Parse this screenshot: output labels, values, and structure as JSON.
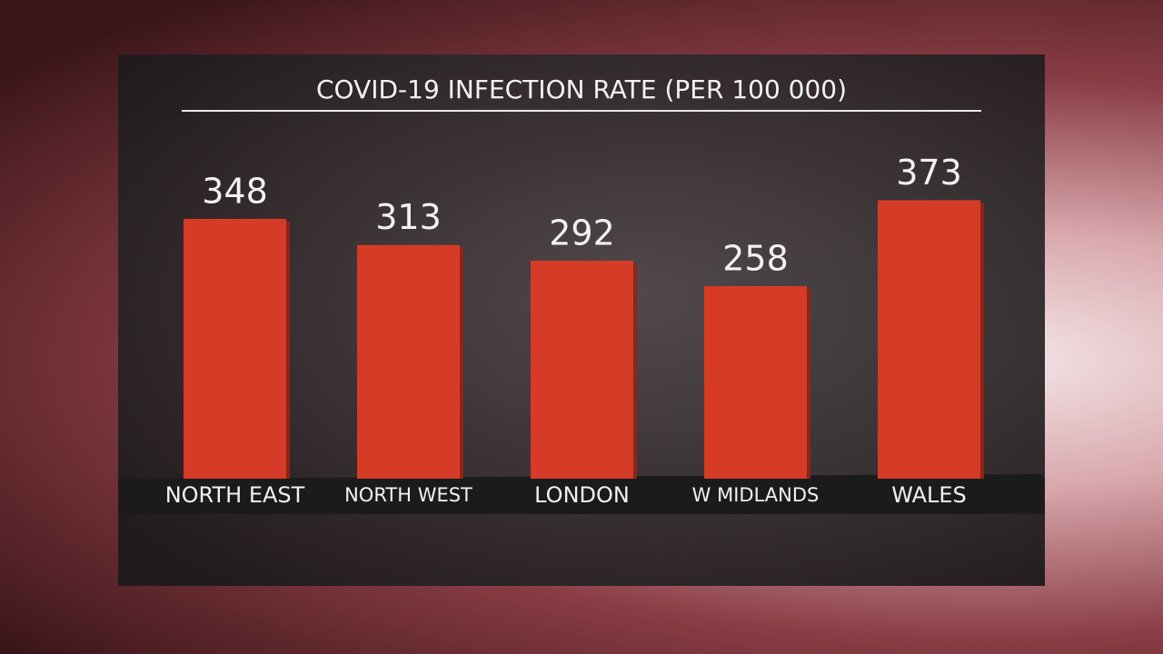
{
  "chart_data": {
    "type": "bar",
    "title": "COVID-19 INFECTION RATE (PER 100 000)",
    "categories": [
      "NORTH EAST",
      "NORTH WEST",
      "LONDON",
      "W MIDLANDS",
      "WALES"
    ],
    "values": [
      348,
      313,
      292,
      258,
      373
    ],
    "color": "#d53b26"
  }
}
